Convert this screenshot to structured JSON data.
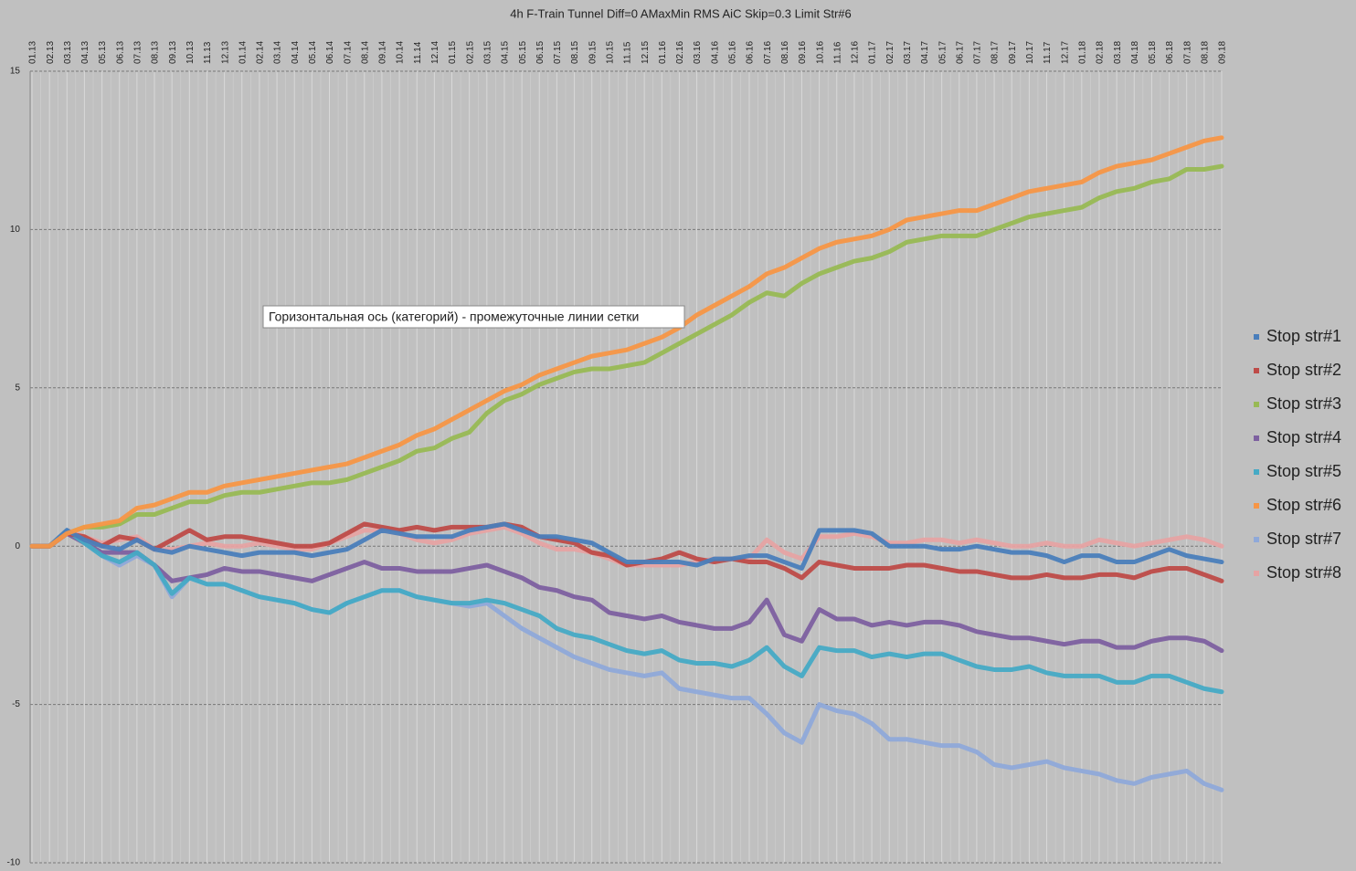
{
  "chart_data": {
    "type": "line",
    "title": "4h F-Train Tunnel  Diff=0 AMaxMin  RMS AiC Skip=0.3  Limit Str#6",
    "annotation": "Горизонтальная ось (категорий)  - промежуточные линии сетки",
    "categories": [
      "01.13",
      "02.13",
      "03.13",
      "04.13",
      "05.13",
      "06.13",
      "07.13",
      "08.13",
      "09.13",
      "10.13",
      "11.13",
      "12.13",
      "01.14",
      "02.14",
      "03.14",
      "04.14",
      "05.14",
      "06.14",
      "07.14",
      "08.14",
      "09.14",
      "10.14",
      "11.14",
      "12.14",
      "01.15",
      "02.15",
      "03.15",
      "04.15",
      "05.15",
      "06.15",
      "07.15",
      "08.15",
      "09.15",
      "10.15",
      "11.15",
      "12.15",
      "01.16",
      "02.16",
      "03.16",
      "04.16",
      "05.16",
      "06.16",
      "07.16",
      "08.16",
      "09.16",
      "10.16",
      "11.16",
      "12.16",
      "01.17",
      "02.17",
      "03.17",
      "04.17",
      "05.17",
      "06.17",
      "07.17",
      "08.17",
      "09.17",
      "10.17",
      "11.17",
      "12.17",
      "01.18",
      "02.18",
      "03.18",
      "04.18",
      "05.18",
      "06.18",
      "07.18",
      "08.18",
      "09.18"
    ],
    "ylim": [
      -10,
      15
    ],
    "yticks": [
      -10,
      -5,
      0,
      5,
      10,
      15
    ],
    "grid": true,
    "legend": "right",
    "series": [
      {
        "name": "Stop str#1",
        "color": "#4a7ebb",
        "values": [
          0,
          0,
          0.5,
          0.2,
          0.0,
          -0.1,
          0.2,
          -0.1,
          -0.2,
          0.0,
          -0.1,
          -0.2,
          -0.3,
          -0.2,
          -0.2,
          -0.2,
          -0.3,
          -0.2,
          -0.1,
          0.2,
          0.5,
          0.4,
          0.3,
          0.3,
          0.3,
          0.5,
          0.6,
          0.7,
          0.5,
          0.3,
          0.3,
          0.2,
          0.1,
          -0.2,
          -0.5,
          -0.5,
          -0.5,
          -0.5,
          -0.6,
          -0.4,
          -0.4,
          -0.3,
          -0.3,
          -0.5,
          -0.7,
          0.5,
          0.5,
          0.5,
          0.4,
          0.0,
          0.0,
          0.0,
          -0.1,
          -0.1,
          0.0,
          -0.1,
          -0.2,
          -0.2,
          -0.3,
          -0.5,
          -0.3,
          -0.3,
          -0.5,
          -0.5,
          -0.3,
          -0.1,
          -0.3,
          -0.4,
          -0.5
        ]
      },
      {
        "name": "Stop str#2",
        "color": "#be4b48",
        "values": [
          0,
          0,
          0.4,
          0.3,
          0.0,
          0.3,
          0.2,
          -0.1,
          0.2,
          0.5,
          0.2,
          0.3,
          0.3,
          0.2,
          0.1,
          0.0,
          0.0,
          0.1,
          0.4,
          0.7,
          0.6,
          0.5,
          0.6,
          0.5,
          0.6,
          0.6,
          0.6,
          0.7,
          0.6,
          0.3,
          0.2,
          0.1,
          -0.2,
          -0.3,
          -0.6,
          -0.5,
          -0.4,
          -0.2,
          -0.4,
          -0.5,
          -0.4,
          -0.5,
          -0.5,
          -0.7,
          -1.0,
          -0.5,
          -0.6,
          -0.7,
          -0.7,
          -0.7,
          -0.6,
          -0.6,
          -0.7,
          -0.8,
          -0.8,
          -0.9,
          -1.0,
          -1.0,
          -0.9,
          -1.0,
          -1.0,
          -0.9,
          -0.9,
          -1.0,
          -0.8,
          -0.7,
          -0.7,
          -0.9,
          -1.1
        ]
      },
      {
        "name": "Stop str#3",
        "color": "#98b954",
        "values": [
          0,
          0,
          0.4,
          0.6,
          0.6,
          0.7,
          1.0,
          1.0,
          1.2,
          1.4,
          1.4,
          1.6,
          1.7,
          1.7,
          1.8,
          1.9,
          2.0,
          2.0,
          2.1,
          2.3,
          2.5,
          2.7,
          3.0,
          3.1,
          3.4,
          3.6,
          4.2,
          4.6,
          4.8,
          5.1,
          5.3,
          5.5,
          5.6,
          5.6,
          5.7,
          5.8,
          6.1,
          6.4,
          6.7,
          7.0,
          7.3,
          7.7,
          8.0,
          7.9,
          8.3,
          8.6,
          8.8,
          9.0,
          9.1,
          9.3,
          9.6,
          9.7,
          9.8,
          9.8,
          9.8,
          10.0,
          10.2,
          10.4,
          10.5,
          10.6,
          10.7,
          11.0,
          11.2,
          11.3,
          11.5,
          11.6,
          11.9,
          11.9,
          12.0
        ]
      },
      {
        "name": "Stop str#4",
        "color": "#7d60a0",
        "values": [
          0,
          0,
          0.4,
          0.1,
          -0.2,
          -0.2,
          -0.2,
          -0.6,
          -1.1,
          -1.0,
          -0.9,
          -0.7,
          -0.8,
          -0.8,
          -0.9,
          -1.0,
          -1.1,
          -0.9,
          -0.7,
          -0.5,
          -0.7,
          -0.7,
          -0.8,
          -0.8,
          -0.8,
          -0.7,
          -0.6,
          -0.8,
          -1.0,
          -1.3,
          -1.4,
          -1.6,
          -1.7,
          -2.1,
          -2.2,
          -2.3,
          -2.2,
          -2.4,
          -2.5,
          -2.6,
          -2.6,
          -2.4,
          -1.7,
          -2.8,
          -3.0,
          -2.0,
          -2.3,
          -2.3,
          -2.5,
          -2.4,
          -2.5,
          -2.4,
          -2.4,
          -2.5,
          -2.7,
          -2.8,
          -2.9,
          -2.9,
          -3.0,
          -3.1,
          -3.0,
          -3.0,
          -3.2,
          -3.2,
          -3.0,
          -2.9,
          -2.9,
          -3.0,
          -3.3
        ]
      },
      {
        "name": "Stop str#5",
        "color": "#46aac5",
        "values": [
          0,
          0,
          0.5,
          0.1,
          -0.3,
          -0.5,
          -0.2,
          -0.6,
          -1.5,
          -1.0,
          -1.2,
          -1.2,
          -1.4,
          -1.6,
          -1.7,
          -1.8,
          -2.0,
          -2.1,
          -1.8,
          -1.6,
          -1.4,
          -1.4,
          -1.6,
          -1.7,
          -1.8,
          -1.8,
          -1.7,
          -1.8,
          -2.0,
          -2.2,
          -2.6,
          -2.8,
          -2.9,
          -3.1,
          -3.3,
          -3.4,
          -3.3,
          -3.6,
          -3.7,
          -3.7,
          -3.8,
          -3.6,
          -3.2,
          -3.8,
          -4.1,
          -3.2,
          -3.3,
          -3.3,
          -3.5,
          -3.4,
          -3.5,
          -3.4,
          -3.4,
          -3.6,
          -3.8,
          -3.9,
          -3.9,
          -3.8,
          -4.0,
          -4.1,
          -4.1,
          -4.1,
          -4.3,
          -4.3,
          -4.1,
          -4.1,
          -4.3,
          -4.5,
          -4.6
        ]
      },
      {
        "name": "Stop str#6",
        "color": "#f79646",
        "values": [
          0,
          0,
          0.4,
          0.6,
          0.7,
          0.8,
          1.2,
          1.3,
          1.5,
          1.7,
          1.7,
          1.9,
          2.0,
          2.1,
          2.2,
          2.3,
          2.4,
          2.5,
          2.6,
          2.8,
          3.0,
          3.2,
          3.5,
          3.7,
          4.0,
          4.3,
          4.6,
          4.9,
          5.1,
          5.4,
          5.6,
          5.8,
          6.0,
          6.1,
          6.2,
          6.4,
          6.6,
          6.9,
          7.3,
          7.6,
          7.9,
          8.2,
          8.6,
          8.8,
          9.1,
          9.4,
          9.6,
          9.7,
          9.8,
          10.0,
          10.3,
          10.4,
          10.5,
          10.6,
          10.6,
          10.8,
          11.0,
          11.2,
          11.3,
          11.4,
          11.5,
          11.8,
          12.0,
          12.1,
          12.2,
          12.4,
          12.6,
          12.8,
          12.9
        ]
      },
      {
        "name": "Stop str#7",
        "color": "#8fa9d9",
        "values": [
          0,
          0,
          0.5,
          0.1,
          -0.3,
          -0.6,
          -0.3,
          -0.6,
          -1.6,
          -1.0,
          -1.2,
          -1.2,
          -1.4,
          -1.6,
          -1.7,
          -1.8,
          -2.0,
          -2.1,
          -1.8,
          -1.6,
          -1.4,
          -1.4,
          -1.6,
          -1.7,
          -1.8,
          -1.9,
          -1.8,
          -2.2,
          -2.6,
          -2.9,
          -3.2,
          -3.5,
          -3.7,
          -3.9,
          -4.0,
          -4.1,
          -4.0,
          -4.5,
          -4.6,
          -4.7,
          -4.8,
          -4.8,
          -5.3,
          -5.9,
          -6.2,
          -5.0,
          -5.2,
          -5.3,
          -5.6,
          -6.1,
          -6.1,
          -6.2,
          -6.3,
          -6.3,
          -6.5,
          -6.9,
          -7.0,
          -6.9,
          -6.8,
          -7.0,
          -7.1,
          -7.2,
          -7.4,
          -7.5,
          -7.3,
          -7.2,
          -7.1,
          -7.5,
          -7.7
        ]
      },
      {
        "name": "Stop str#8",
        "color": "#e6a3a3",
        "values": [
          0,
          0,
          0.5,
          0.3,
          0.1,
          0.2,
          0.3,
          -0.1,
          -0.1,
          0.0,
          0.1,
          0.0,
          0.0,
          0.1,
          0.0,
          -0.1,
          -0.1,
          0.1,
          0.3,
          0.5,
          0.5,
          0.4,
          0.2,
          0.1,
          0.2,
          0.4,
          0.5,
          0.6,
          0.4,
          0.1,
          -0.1,
          -0.1,
          -0.2,
          -0.4,
          -0.6,
          -0.6,
          -0.6,
          -0.6,
          -0.5,
          -0.4,
          -0.4,
          -0.4,
          0.2,
          -0.2,
          -0.4,
          0.3,
          0.3,
          0.4,
          0.3,
          0.1,
          0.1,
          0.2,
          0.2,
          0.1,
          0.2,
          0.1,
          0.0,
          0.0,
          0.1,
          0.0,
          0.0,
          0.2,
          0.1,
          0.0,
          0.1,
          0.2,
          0.3,
          0.2,
          0.0
        ]
      }
    ]
  }
}
